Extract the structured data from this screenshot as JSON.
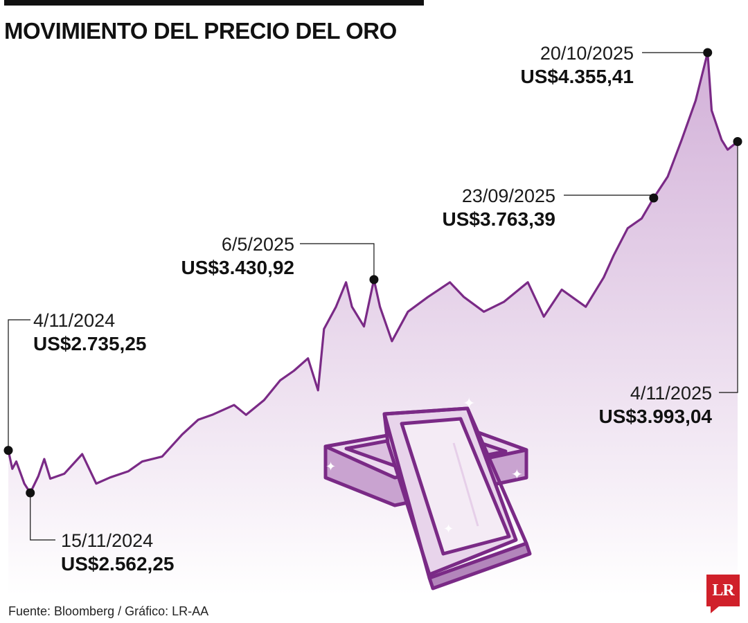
{
  "title": "MOVIMIENTO DEL PRECIO DEL ORO",
  "source": "Fuente: Bloomberg / Gráfico: LR-AA",
  "logo_text": "LR",
  "colors": {
    "line": "#7a2a86",
    "fill_top": "#d2b0d8",
    "fill_bottom": "#ffffff",
    "dot": "#111111"
  },
  "chart_data": {
    "type": "area",
    "title": "MOVIMIENTO DEL PRECIO DEL ORO",
    "xlabel": "",
    "ylabel": "",
    "x_range": [
      "2024-11-04",
      "2025-11-04"
    ],
    "ylim": [
      2000,
      4400
    ],
    "grid": false,
    "series": [
      {
        "points": [
          [
            "2024-11-04",
            2735.25
          ],
          [
            "2024-11-06",
            2660
          ],
          [
            "2024-11-08",
            2690
          ],
          [
            "2024-11-12",
            2600
          ],
          [
            "2024-11-15",
            2562.25
          ],
          [
            "2024-11-19",
            2630
          ],
          [
            "2024-11-22",
            2700
          ],
          [
            "2024-11-25",
            2620
          ],
          [
            "2024-12-02",
            2640
          ],
          [
            "2024-12-11",
            2720
          ],
          [
            "2024-12-18",
            2600
          ],
          [
            "2024-12-25",
            2625
          ],
          [
            "2025-01-03",
            2650
          ],
          [
            "2025-01-10",
            2690
          ],
          [
            "2025-01-20",
            2710
          ],
          [
            "2025-01-30",
            2800
          ],
          [
            "2025-02-07",
            2860
          ],
          [
            "2025-02-14",
            2880
          ],
          [
            "2025-02-25",
            2920
          ],
          [
            "2025-03-03",
            2880
          ],
          [
            "2025-03-12",
            2940
          ],
          [
            "2025-03-20",
            3020
          ],
          [
            "2025-03-27",
            3060
          ],
          [
            "2025-04-03",
            3110
          ],
          [
            "2025-04-08",
            2980
          ],
          [
            "2025-04-11",
            3230
          ],
          [
            "2025-04-17",
            3320
          ],
          [
            "2025-04-22",
            3420
          ],
          [
            "2025-04-25",
            3320
          ],
          [
            "2025-05-01",
            3240
          ],
          [
            "2025-05-06",
            3430.92
          ],
          [
            "2025-05-09",
            3320
          ],
          [
            "2025-05-15",
            3180
          ],
          [
            "2025-05-23",
            3300
          ],
          [
            "2025-06-02",
            3360
          ],
          [
            "2025-06-13",
            3420
          ],
          [
            "2025-06-20",
            3360
          ],
          [
            "2025-06-30",
            3300
          ],
          [
            "2025-07-10",
            3340
          ],
          [
            "2025-07-22",
            3420
          ],
          [
            "2025-07-30",
            3280
          ],
          [
            "2025-08-08",
            3390
          ],
          [
            "2025-08-20",
            3320
          ],
          [
            "2025-08-29",
            3440
          ],
          [
            "2025-09-03",
            3530
          ],
          [
            "2025-09-10",
            3640
          ],
          [
            "2025-09-17",
            3680
          ],
          [
            "2025-09-23",
            3763.39
          ],
          [
            "2025-09-30",
            3850
          ],
          [
            "2025-10-07",
            4000
          ],
          [
            "2025-10-14",
            4160
          ],
          [
            "2025-10-20",
            4355.41
          ],
          [
            "2025-10-22",
            4120
          ],
          [
            "2025-10-27",
            4000
          ],
          [
            "2025-10-30",
            3960
          ],
          [
            "2025-11-04",
            3993.04
          ]
        ]
      }
    ],
    "annotations": [
      {
        "date_label": "4/11/2024",
        "value_label": "US$2.735,25",
        "x": "2024-11-04",
        "y": 2735.25
      },
      {
        "date_label": "15/11/2024",
        "value_label": "US$2.562,25",
        "x": "2024-11-15",
        "y": 2562.25
      },
      {
        "date_label": "6/5/2025",
        "value_label": "US$3.430,92",
        "x": "2025-05-06",
        "y": 3430.92
      },
      {
        "date_label": "23/09/2025",
        "value_label": "US$3.763,39",
        "x": "2025-09-23",
        "y": 3763.39
      },
      {
        "date_label": "20/10/2025",
        "value_label": "US$4.355,41",
        "x": "2025-10-20",
        "y": 4355.41
      },
      {
        "date_label": "4/11/2025",
        "value_label": "US$3.993,04",
        "x": "2025-11-04",
        "y": 3993.04
      }
    ]
  }
}
